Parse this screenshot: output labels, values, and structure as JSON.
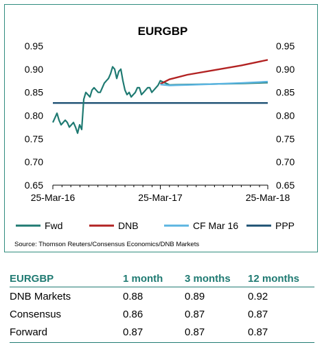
{
  "chart_data": {
    "type": "line",
    "title": "EURGBP",
    "x_tick_labels": [
      "25-Mar-16",
      "25-Mar-17",
      "25-Mar-18"
    ],
    "x_range": [
      "2016-03-25",
      "2018-03-25"
    ],
    "y_ticks": [
      0.65,
      0.7,
      0.75,
      0.8,
      0.85,
      0.9,
      0.95
    ],
    "ylim": [
      0.65,
      0.95
    ],
    "y_tick_labels": [
      "0.65",
      "0.70",
      "0.75",
      "0.80",
      "0.85",
      "0.90",
      "0.95"
    ],
    "grid": false,
    "legend_position": "bottom",
    "source": "Source:  Thomson Reuters/Consensus  Economics/DNB Markets",
    "series": [
      {
        "name": "Fwd",
        "color": "#1f7a72",
        "x": [
          "2016-03-25",
          "2016-04-01",
          "2016-04-08",
          "2016-04-15",
          "2016-04-22",
          "2016-04-29",
          "2016-05-06",
          "2016-05-13",
          "2016-05-20",
          "2016-05-27",
          "2016-06-03",
          "2016-06-10",
          "2016-06-17",
          "2016-06-24",
          "2016-07-01",
          "2016-07-08",
          "2016-07-15",
          "2016-07-22",
          "2016-07-29",
          "2016-08-05",
          "2016-08-12",
          "2016-08-19",
          "2016-08-26",
          "2016-09-02",
          "2016-09-09",
          "2016-09-16",
          "2016-09-23",
          "2016-09-30",
          "2016-10-07",
          "2016-10-14",
          "2016-10-21",
          "2016-10-28",
          "2016-11-04",
          "2016-11-11",
          "2016-11-18",
          "2016-11-25",
          "2016-12-02",
          "2016-12-09",
          "2016-12-16",
          "2016-12-23",
          "2016-12-30",
          "2017-01-06",
          "2017-01-13",
          "2017-01-20",
          "2017-01-27",
          "2017-02-03",
          "2017-02-10",
          "2017-02-17",
          "2017-02-24",
          "2017-03-03",
          "2017-03-10",
          "2017-03-17",
          "2017-03-25",
          "2017-04-25",
          "2017-06-25",
          "2017-09-25",
          "2017-12-25",
          "2018-03-25"
        ],
        "values": [
          0.785,
          0.795,
          0.805,
          0.79,
          0.78,
          0.785,
          0.79,
          0.785,
          0.775,
          0.78,
          0.785,
          0.775,
          0.762,
          0.78,
          0.77,
          0.835,
          0.85,
          0.845,
          0.84,
          0.855,
          0.86,
          0.855,
          0.85,
          0.85,
          0.86,
          0.87,
          0.875,
          0.88,
          0.89,
          0.905,
          0.9,
          0.88,
          0.895,
          0.9,
          0.875,
          0.855,
          0.845,
          0.85,
          0.84,
          0.845,
          0.85,
          0.86,
          0.86,
          0.845,
          0.85,
          0.855,
          0.86,
          0.86,
          0.85,
          0.855,
          0.86,
          0.865,
          0.875,
          0.866,
          0.867,
          0.868,
          0.869,
          0.871
        ]
      },
      {
        "name": "DNB",
        "color": "#b22222",
        "x": [
          "2017-03-25",
          "2017-04-25",
          "2017-06-25",
          "2017-09-25",
          "2017-12-25",
          "2018-03-25"
        ],
        "values": [
          0.868,
          0.878,
          0.888,
          0.898,
          0.908,
          0.92
        ]
      },
      {
        "name": "CF Mar 16",
        "color": "#5ab4e0",
        "x": [
          "2017-03-25",
          "2017-04-25",
          "2017-06-25",
          "2017-09-25",
          "2017-12-25",
          "2018-03-25"
        ],
        "values": [
          0.867,
          0.865,
          0.866,
          0.868,
          0.87,
          0.873
        ]
      },
      {
        "name": "PPP",
        "color": "#1b4f72",
        "x": [
          "2016-03-25",
          "2018-03-25"
        ],
        "values": [
          0.827,
          0.827
        ]
      }
    ]
  },
  "table": {
    "headers": [
      "EURGBP",
      "1 month",
      "3 months",
      "12 months"
    ],
    "rows": [
      [
        "DNB Markets",
        "0.88",
        "0.89",
        "0.92"
      ],
      [
        "Consensus",
        "0.86",
        "0.87",
        "0.87"
      ],
      [
        "Forward",
        "0.87",
        "0.87",
        "0.87"
      ]
    ]
  }
}
